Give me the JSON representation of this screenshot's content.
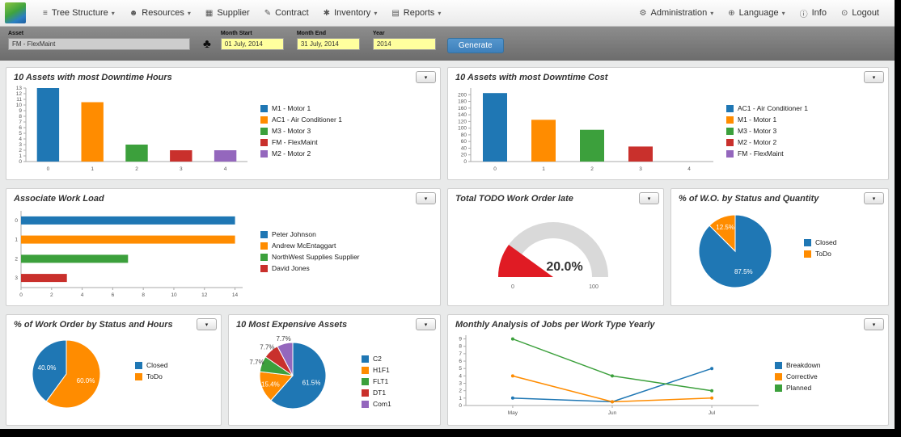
{
  "glyphs": {
    "caret": "▾"
  },
  "navbar": {
    "icon_glyphs": {
      "tree-structure": "≡",
      "resources": "☻",
      "supplier": "▦",
      "contract": "✎",
      "inventory": "✱",
      "reports": "▤",
      "gear": "⚙",
      "globe": "⊕",
      "info": "ⓘ",
      "power": "⊙"
    },
    "menu_left": [
      {
        "label": "Tree Structure",
        "icon": "tree-structure",
        "caret": true
      },
      {
        "label": "Resources",
        "icon": "resources",
        "caret": true
      },
      {
        "label": "Supplier",
        "icon": "supplier",
        "caret": false
      },
      {
        "label": "Contract",
        "icon": "contract",
        "caret": false
      },
      {
        "label": "Inventory",
        "icon": "inventory",
        "caret": true
      },
      {
        "label": "Reports",
        "icon": "reports",
        "caret": true
      }
    ],
    "menu_right": [
      {
        "label": "Administration",
        "icon": "gear",
        "caret": true
      },
      {
        "label": "Language",
        "icon": "globe",
        "caret": true
      },
      {
        "label": "Info",
        "icon": "info",
        "caret": false
      },
      {
        "label": "Logout",
        "icon": "power",
        "caret": false
      }
    ]
  },
  "filter_bar": {
    "asset_label": "Asset",
    "asset_value": "FM - FlexMaint",
    "tree_icon_glyph": "♣",
    "month_start_label": "Month Start",
    "month_start_value": "01 July, 2014",
    "month_end_label": "Month End",
    "month_end_value": "31 July, 2014",
    "year_label": "Year",
    "year_value": "2014",
    "generate_label": "Generate",
    "generate_color": "#428bca"
  },
  "palette": {
    "blue": "#1f77b4",
    "orange": "#ff8c00",
    "green": "#3ca03c",
    "red": "#c9302c",
    "purple": "#9467bd"
  },
  "chart_data": [
    {
      "type": "bar",
      "title": "10 Assets with most Downtime Hours",
      "categories": [
        "M1 - Motor 1",
        "AC1 - Air Conditioner 1",
        "M3 - Motor 3",
        "FM - FlexMaint",
        "M2 - Motor 2"
      ],
      "values": [
        13,
        10.5,
        3,
        2,
        2
      ],
      "colors": [
        "#1f77b4",
        "#ff8c00",
        "#3ca03c",
        "#c9302c",
        "#9467bd"
      ],
      "xtick_labels": [
        "0",
        "1",
        "2",
        "3",
        "4"
      ],
      "yticks": [
        0,
        1,
        2,
        3,
        4,
        5,
        6,
        7,
        8,
        9,
        10,
        11,
        12,
        13
      ],
      "ylim": [
        0,
        13
      ]
    },
    {
      "type": "bar",
      "title": "10 Assets with most Downtime Cost",
      "categories": [
        "AC1 - Air Conditioner 1",
        "M1 - Motor 1",
        "M3 - Motor 3",
        "M2 - Motor 2",
        "FM - FlexMaint"
      ],
      "values": [
        205,
        125,
        95,
        45,
        0
      ],
      "colors": [
        "#1f77b4",
        "#ff8c00",
        "#3ca03c",
        "#c9302c",
        "#9467bd"
      ],
      "xtick_labels": [
        "0",
        "1",
        "2",
        "3",
        "4"
      ],
      "yticks": [
        0,
        20,
        40,
        60,
        80,
        100,
        120,
        140,
        160,
        180,
        200
      ],
      "ylim": [
        0,
        220
      ]
    },
    {
      "type": "hbar",
      "title": "Associate Work Load",
      "categories": [
        "Peter Johnson",
        "Andrew McEntaggart",
        "NorthWest Supplies Supplier",
        "David Jones"
      ],
      "values": [
        14,
        14,
        7,
        3
      ],
      "colors": [
        "#1f77b4",
        "#ff8c00",
        "#3ca03c",
        "#c9302c"
      ],
      "ytick_labels": [
        "0",
        "1",
        "2",
        "3"
      ],
      "xticks": [
        0,
        2,
        4,
        6,
        8,
        10,
        12,
        14
      ],
      "xlim": [
        0,
        14.5
      ]
    },
    {
      "type": "gauge",
      "title": "Total TODO Work Order late",
      "value": 20.0,
      "min": 0,
      "max": 100,
      "value_label": "20.0%",
      "min_label": "0",
      "max_label": "100",
      "color": "#e01b24",
      "track_color": "#d9d9d9"
    },
    {
      "type": "pie",
      "title": "% of W.O. by Status and Quantity",
      "start_deg": 270,
      "slices": [
        {
          "label": "Closed",
          "value": 87.5,
          "display": "87.5%",
          "color": "#1f77b4"
        },
        {
          "label": "ToDo",
          "value": 12.5,
          "display": "12.5%",
          "color": "#ff8c00"
        }
      ]
    },
    {
      "type": "pie",
      "title": "% of Work Order by Status and Hours",
      "start_deg": 126,
      "slices": [
        {
          "label": "Closed",
          "value": 40.0,
          "display": "40.0%",
          "color": "#1f77b4"
        },
        {
          "label": "ToDo",
          "value": 60.0,
          "display": "60.0%",
          "color": "#ff8c00"
        }
      ]
    },
    {
      "type": "pie",
      "title": "10 Most Expensive Assets",
      "start_deg": 270,
      "slices": [
        {
          "label": "C2",
          "value": 61.5,
          "display": "61.5%",
          "color": "#1f77b4"
        },
        {
          "label": "H1F1",
          "value": 15.4,
          "display": "15.4%",
          "color": "#ff8c00"
        },
        {
          "label": "FLT1",
          "value": 7.7,
          "display": "7.7%",
          "color": "#3ca03c"
        },
        {
          "label": "DT1",
          "value": 7.7,
          "display": "7.7%",
          "color": "#c9302c"
        },
        {
          "label": "Com1",
          "value": 7.7,
          "display": "7.7%",
          "color": "#9467bd"
        }
      ]
    },
    {
      "type": "line",
      "title": "Monthly Analysis of Jobs per Work Type Yearly",
      "x_labels": [
        "May",
        "Jun",
        "Jul"
      ],
      "series": [
        {
          "name": "Breakdown",
          "color": "#1f77b4",
          "values": [
            1,
            0.5,
            5
          ]
        },
        {
          "name": "Corrective",
          "color": "#ff8c00",
          "values": [
            4,
            0.5,
            1
          ]
        },
        {
          "name": "Planned",
          "color": "#3ca03c",
          "values": [
            9,
            4,
            2
          ]
        }
      ],
      "yticks": [
        0,
        1,
        2,
        3,
        4,
        5,
        6,
        7,
        8,
        9
      ],
      "ylim": [
        0,
        9.5
      ]
    }
  ]
}
